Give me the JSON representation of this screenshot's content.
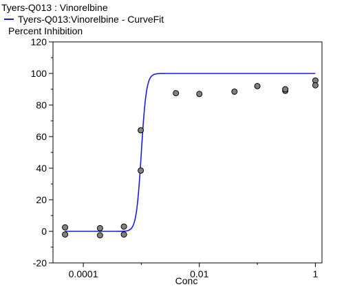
{
  "chart_data": {
    "type": "scatter",
    "title": "Tyers-Q013  :  Vinorelbine",
    "ylabel": "Percent Inhibition",
    "xlabel": "Conc",
    "x_scale": "log",
    "xlim": [
      3e-05,
      1.3
    ],
    "ylim": [
      -20,
      120
    ],
    "x_ticks": [
      {
        "value": 0.0001,
        "label": "0.0001"
      },
      {
        "value": 0.01,
        "label": "0.01"
      },
      {
        "value": 1,
        "label": "1"
      }
    ],
    "y_ticks": [
      {
        "value": 120,
        "label": "120"
      },
      {
        "value": 100,
        "label": "100"
      },
      {
        "value": 80,
        "label": "80"
      },
      {
        "value": 60,
        "label": "60"
      },
      {
        "value": 40,
        "label": "40"
      },
      {
        "value": 20,
        "label": "20"
      },
      {
        "value": 0,
        "label": "0"
      },
      {
        "value": -20,
        "label": "-20"
      }
    ],
    "grid": false,
    "legend_position": "top-left",
    "series": [
      {
        "name": "Tyers-Q013:Vinorelbine - CurveFit",
        "kind": "line",
        "color": "#1a1adf",
        "model": "4-parameter logistic",
        "bottom": 0,
        "top": 100,
        "ec50": 0.001,
        "hill": 10
      },
      {
        "kind": "points",
        "marker_color": "#808080",
        "points": [
          {
            "x": 4.85e-05,
            "y": 2.5
          },
          {
            "x": 4.85e-05,
            "y": -2
          },
          {
            "x": 0.000194,
            "y": 2
          },
          {
            "x": 0.000194,
            "y": -2.5
          },
          {
            "x": 0.000501,
            "y": 3
          },
          {
            "x": 0.000501,
            "y": -2
          },
          {
            "x": 0.000978,
            "y": 64
          },
          {
            "x": 0.000978,
            "y": 38.5
          },
          {
            "x": 0.00395,
            "y": 87.5
          },
          {
            "x": 0.01,
            "y": 87
          },
          {
            "x": 0.0403,
            "y": 88.5
          },
          {
            "x": 0.1,
            "y": 92
          },
          {
            "x": 0.303,
            "y": 89
          },
          {
            "x": 0.303,
            "y": 90
          },
          {
            "x": 1,
            "y": 95.5
          },
          {
            "x": 1,
            "y": 92.5
          }
        ]
      }
    ]
  }
}
